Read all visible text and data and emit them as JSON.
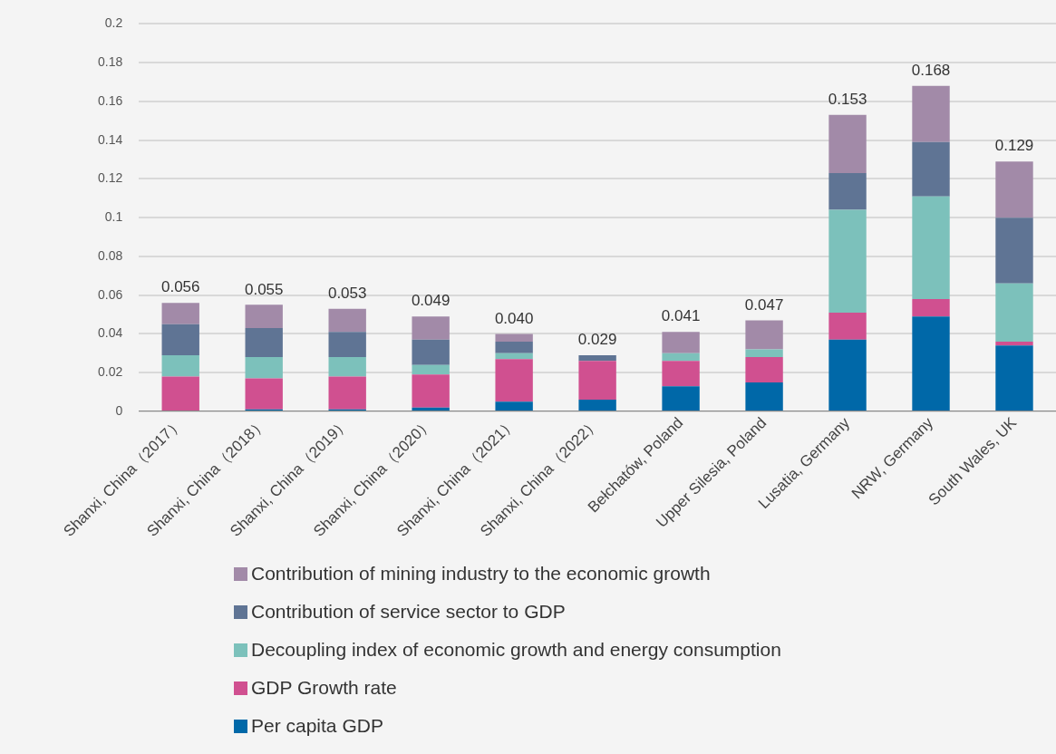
{
  "chart_data": {
    "type": "bar",
    "stacked": true,
    "categories": [
      "Shanxi, China（2017）",
      "Shanxi, China（2018）",
      "Shanxi, China（2019）",
      "Shanxi, China（2020）",
      "Shanxi, China（2021）",
      "Shanxi, China（2022）",
      "Bełchatów, Poland",
      "Upper Silesia, Poland",
      "Lusatia, Germany",
      "NRW, Germany",
      "South Wales, UK"
    ],
    "series": [
      {
        "name": "Per capita GDP",
        "color": "#0068a8",
        "values": [
          0,
          0.001,
          0.001,
          0.002,
          0.005,
          0.006,
          0.013,
          0.015,
          0.037,
          0.049,
          0.034
        ]
      },
      {
        "name": "GDP Growth rate",
        "color": "#d05090",
        "values": [
          0.018,
          0.016,
          0.017,
          0.017,
          0.022,
          0.02,
          0.013,
          0.013,
          0.014,
          0.009,
          0.002
        ]
      },
      {
        "name": "Decoupling index of economic growth and energy consumption",
        "color": "#7cc1bb",
        "values": [
          0.011,
          0.011,
          0.01,
          0.005,
          0.003,
          0,
          0.004,
          0.004,
          0.053,
          0.053,
          0.03
        ]
      },
      {
        "name": "Contribution of service sector to GDP",
        "color": "#5f7494",
        "values": [
          0.016,
          0.015,
          0.013,
          0.013,
          0.006,
          0.003,
          0,
          0,
          0.019,
          0.028,
          0.034
        ]
      },
      {
        "name": "Contribution of mining industry to the economic growth",
        "color": "#a28aa8",
        "values": [
          0.011,
          0.012,
          0.012,
          0.012,
          0.004,
          0,
          0.011,
          0.015,
          0.03,
          0.029,
          0.029
        ]
      }
    ],
    "totals": [
      "0.056",
      "0.055",
      "0.053",
      "0.049",
      "0.040",
      "0.029",
      "0.041",
      "0.047",
      "0.153",
      "0.168",
      "0.129"
    ],
    "ylim": [
      0,
      0.2
    ],
    "yticks": [
      0,
      0.02,
      0.04,
      0.06,
      0.08,
      0.1,
      0.12,
      0.14,
      0.16,
      0.18,
      0.2
    ],
    "grid": "y",
    "legend": "bottom"
  }
}
